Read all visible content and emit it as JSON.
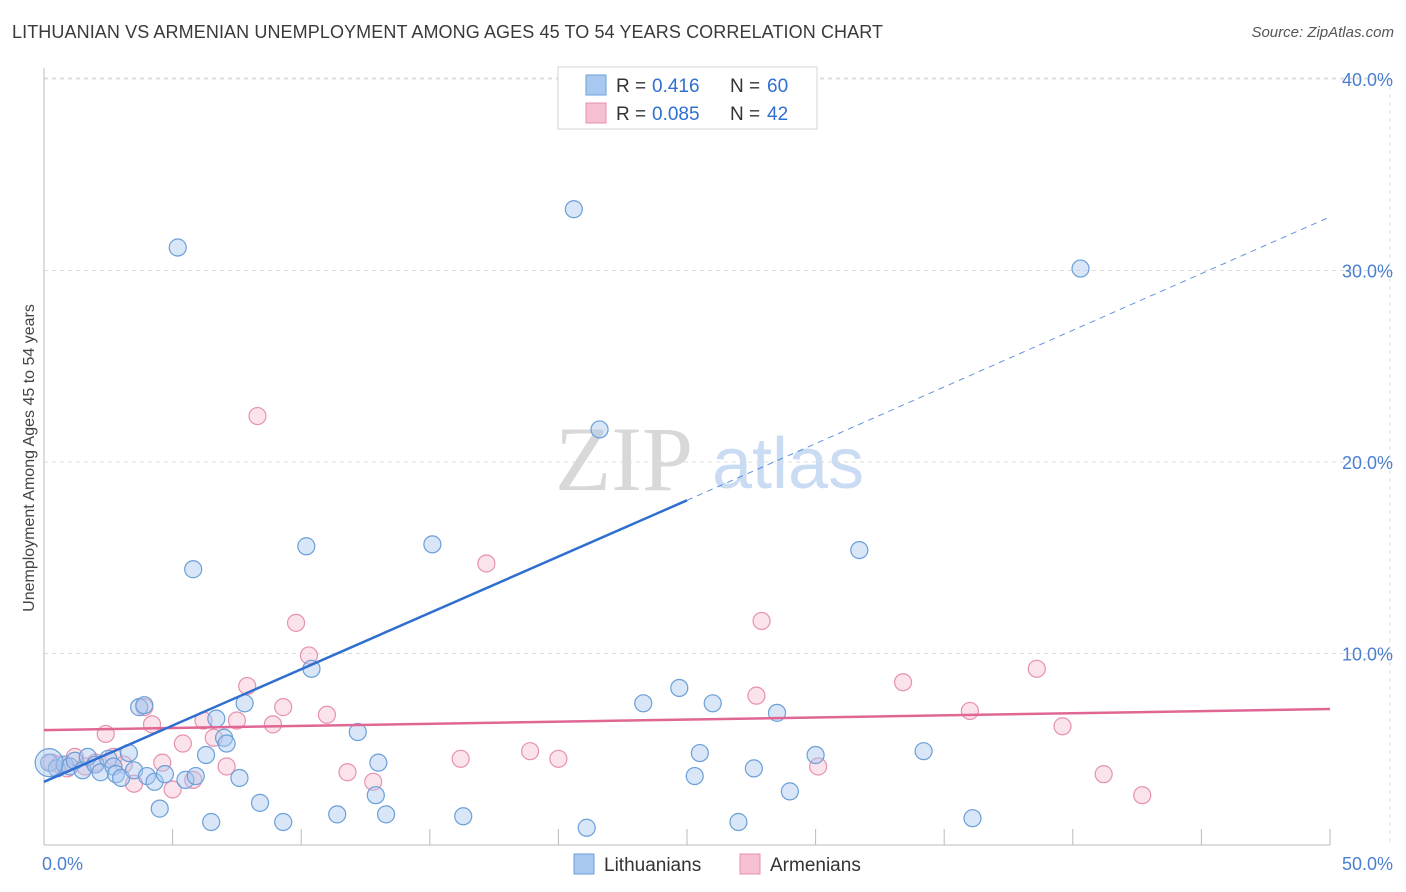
{
  "header": {
    "title": "LITHUANIAN VS ARMENIAN UNEMPLOYMENT AMONG AGES 45 TO 54 YEARS CORRELATION CHART",
    "source": "Source: ZipAtlas.com"
  },
  "colors": {
    "blue_fill": "#a8c8f0",
    "blue_stroke": "#6a9fd8",
    "blue_line": "#2f6fd0",
    "pink_fill": "#f6c0d2",
    "pink_stroke": "#e890b0",
    "pink_line": "#e06694",
    "tick_text": "#4a7fd0",
    "grid": "#dcdcdc"
  },
  "watermark": {
    "zip": "ZIP",
    "atlas": "atlas"
  },
  "chart_data": {
    "type": "scatter",
    "title": "LITHUANIAN VS ARMENIAN UNEMPLOYMENT AMONG AGES 45 TO 54 YEARS CORRELATION CHART",
    "xlabel": "",
    "ylabel": "Unemployment Among Ages 45 to 54 years",
    "xlim": [
      0,
      50
    ],
    "ylim": [
      0,
      40
    ],
    "x_tick_labels": {
      "min": "0.0%",
      "max": "50.0%"
    },
    "y_ticks": [
      10,
      20,
      30,
      40
    ],
    "y_tick_labels": [
      "10.0%",
      "20.0%",
      "30.0%",
      "40.0%"
    ],
    "grid": true,
    "legend_position": "top-center",
    "stats": [
      {
        "r_label": "R =",
        "r_value": "0.416",
        "n_label": "N =",
        "n_value": "60"
      },
      {
        "r_label": "R =",
        "r_value": "0.085",
        "n_label": "N =",
        "n_value": "42"
      }
    ],
    "series": [
      {
        "name": "Lithuanians",
        "color": "blue",
        "trend": {
          "x0": 0,
          "y0": 3.3,
          "x1": 25,
          "y1": 18.0,
          "dash_to_x": 50,
          "dash_to_y": 32.8
        },
        "points": [
          [
            0.2,
            4.3
          ],
          [
            0.5,
            4.0
          ],
          [
            0.8,
            4.2
          ],
          [
            1.0,
            4.1
          ],
          [
            1.2,
            4.4
          ],
          [
            1.5,
            3.9
          ],
          [
            1.7,
            4.6
          ],
          [
            2.0,
            4.2
          ],
          [
            2.2,
            3.8
          ],
          [
            2.5,
            4.5
          ],
          [
            2.7,
            4.1
          ],
          [
            2.8,
            3.7
          ],
          [
            3.0,
            3.5
          ],
          [
            3.3,
            4.8
          ],
          [
            3.5,
            3.9
          ],
          [
            3.7,
            7.2
          ],
          [
            3.9,
            7.3
          ],
          [
            4.0,
            3.6
          ],
          [
            4.3,
            3.3
          ],
          [
            4.5,
            1.9
          ],
          [
            4.7,
            3.7
          ],
          [
            5.2,
            31.2
          ],
          [
            5.5,
            3.4
          ],
          [
            5.8,
            14.4
          ],
          [
            5.9,
            3.6
          ],
          [
            6.3,
            4.7
          ],
          [
            6.5,
            1.2
          ],
          [
            6.7,
            6.6
          ],
          [
            7.0,
            5.6
          ],
          [
            7.1,
            5.3
          ],
          [
            7.6,
            3.5
          ],
          [
            7.8,
            7.4
          ],
          [
            8.4,
            2.2
          ],
          [
            9.3,
            1.2
          ],
          [
            10.2,
            15.6
          ],
          [
            10.4,
            9.2
          ],
          [
            11.4,
            1.6
          ],
          [
            12.2,
            5.9
          ],
          [
            12.9,
            2.6
          ],
          [
            13.0,
            4.3
          ],
          [
            13.3,
            1.6
          ],
          [
            15.1,
            15.7
          ],
          [
            16.3,
            1.5
          ],
          [
            20.6,
            33.2
          ],
          [
            21.1,
            0.9
          ],
          [
            21.6,
            21.7
          ],
          [
            23.3,
            7.4
          ],
          [
            24.7,
            8.2
          ],
          [
            25.3,
            3.6
          ],
          [
            25.5,
            4.8
          ],
          [
            26.0,
            7.4
          ],
          [
            27.0,
            1.2
          ],
          [
            27.6,
            4.0
          ],
          [
            28.5,
            6.9
          ],
          [
            29.0,
            2.8
          ],
          [
            30.0,
            4.7
          ],
          [
            31.7,
            15.4
          ],
          [
            34.2,
            4.9
          ],
          [
            36.1,
            1.4
          ],
          [
            40.3,
            30.1
          ]
        ]
      },
      {
        "name": "Armenians",
        "color": "pink",
        "trend": {
          "x0": 0,
          "y0": 6.0,
          "x1": 50,
          "y1": 7.1
        },
        "points": [
          [
            0.3,
            4.3
          ],
          [
            0.6,
            4.2
          ],
          [
            0.9,
            4.0
          ],
          [
            1.2,
            4.6
          ],
          [
            1.6,
            4.1
          ],
          [
            2.0,
            4.3
          ],
          [
            2.4,
            5.8
          ],
          [
            2.7,
            4.6
          ],
          [
            3.1,
            4.2
          ],
          [
            3.5,
            3.2
          ],
          [
            3.9,
            7.2
          ],
          [
            4.2,
            6.3
          ],
          [
            4.6,
            4.3
          ],
          [
            5.0,
            2.9
          ],
          [
            5.4,
            5.3
          ],
          [
            5.8,
            3.4
          ],
          [
            6.2,
            6.5
          ],
          [
            6.6,
            5.6
          ],
          [
            7.1,
            4.1
          ],
          [
            7.5,
            6.5
          ],
          [
            7.9,
            8.3
          ],
          [
            8.3,
            22.4
          ],
          [
            8.9,
            6.3
          ],
          [
            9.3,
            7.2
          ],
          [
            9.8,
            11.6
          ],
          [
            10.3,
            9.9
          ],
          [
            11.0,
            6.8
          ],
          [
            11.8,
            3.8
          ],
          [
            12.8,
            3.3
          ],
          [
            17.2,
            14.7
          ],
          [
            16.2,
            4.5
          ],
          [
            18.9,
            4.9
          ],
          [
            20.0,
            4.5
          ],
          [
            27.7,
            7.8
          ],
          [
            27.9,
            11.7
          ],
          [
            30.1,
            4.1
          ],
          [
            33.4,
            8.5
          ],
          [
            36.0,
            7.0
          ],
          [
            38.6,
            9.2
          ],
          [
            39.6,
            6.2
          ],
          [
            41.2,
            3.7
          ],
          [
            42.7,
            2.6
          ]
        ]
      }
    ]
  },
  "legend": {
    "items": [
      {
        "label": "Lithuanians"
      },
      {
        "label": "Armenians"
      }
    ]
  }
}
